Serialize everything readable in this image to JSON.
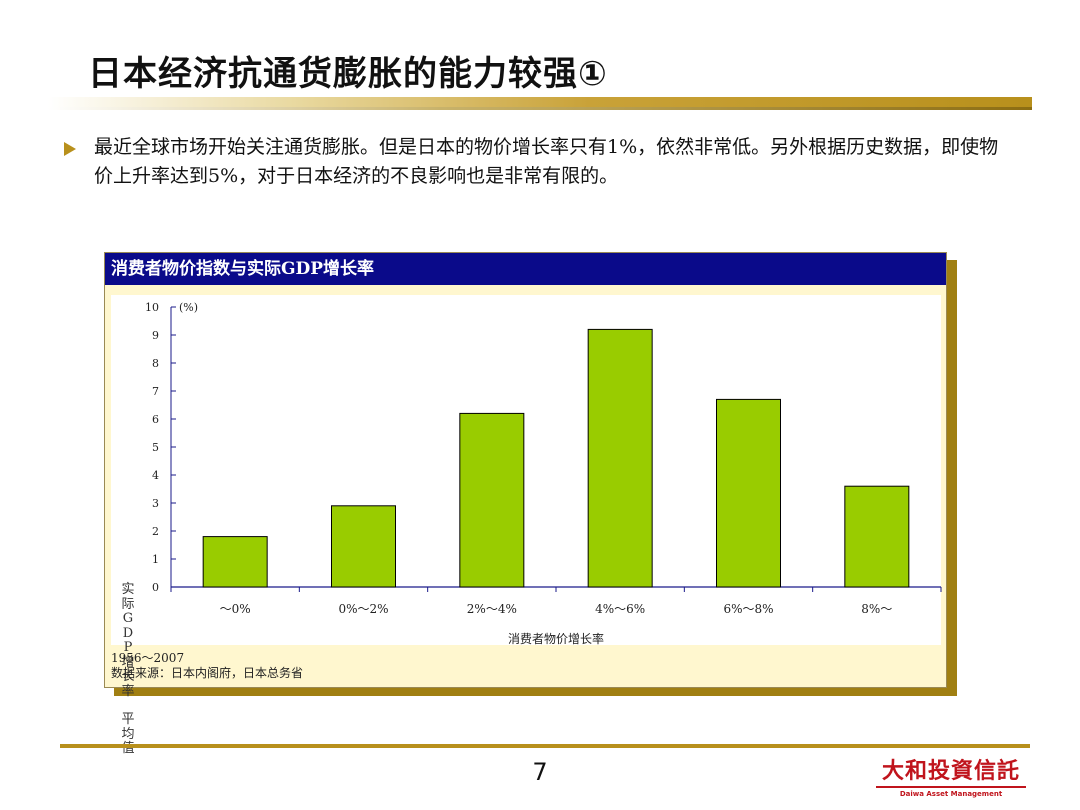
{
  "slide": {
    "title": "日本经济抗通货膨胀的能力较强①",
    "bullet": "最近全球市场开始关注通货膨胀。但是日本的物价增长率只有1%，依然非常低。另外根据历史数据，即使物价上升率达到5%，对于日本经济的不良影响也是非常有限的。",
    "page_number": "7",
    "logo_cn": "大和投資信託",
    "logo_en": "Daiwa Asset Management"
  },
  "chart_panel": {
    "header": "消费者物价指数与实际GDP增长率",
    "ylabel_vertical": "实际GDP增长率平均值",
    "unit": "(%)",
    "footnote_period": "1956～2007",
    "footnote_source": "数据来源：日本内阁府，日本总务省"
  },
  "chart_data": {
    "type": "bar",
    "title": "消费者物价指数与实际GDP增长率",
    "xlabel": "消费者物价增长率",
    "ylabel": "实际GDP增长率平均值",
    "categories": [
      "～0%",
      "0%～2%",
      "2%～4%",
      "4%～6%",
      "6%～8%",
      "8%～"
    ],
    "values": [
      1.8,
      2.9,
      6.2,
      9.2,
      6.7,
      3.6
    ],
    "ylim": [
      0,
      10
    ],
    "yticks": [
      "0",
      "1",
      "2",
      "3",
      "4",
      "5",
      "6",
      "7",
      "8",
      "9",
      "10"
    ],
    "bar_color": "#99cc00",
    "grid": false,
    "legend": "none"
  },
  "colors": {
    "header_bg": "#0a0a8a",
    "accent_gold": "#b8901c",
    "panel_bg": "#fff7cf",
    "logo_red": "#c0141c"
  }
}
